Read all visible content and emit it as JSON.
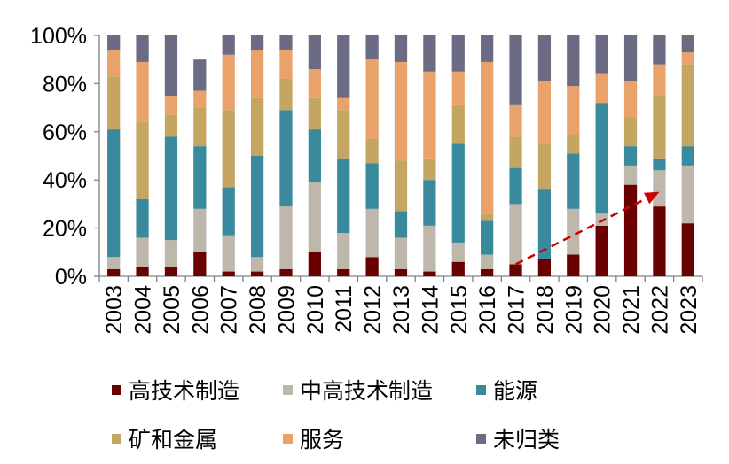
{
  "chart_data": {
    "type": "bar",
    "stacked": true,
    "categories": [
      "2003",
      "2004",
      "2005",
      "2006",
      "2007",
      "2008",
      "2009",
      "2010",
      "2011",
      "2012",
      "2013",
      "2014",
      "2015",
      "2016",
      "2017",
      "2018",
      "2019",
      "2020",
      "2021",
      "2022",
      "2023"
    ],
    "y_ticks": [
      "0%",
      "20%",
      "40%",
      "60%",
      "80%",
      "100%"
    ],
    "ylim": [
      0,
      100
    ],
    "grid": false,
    "legend_position": "bottom",
    "series": [
      {
        "name": "高技术制造",
        "color": "#6b0000",
        "values": [
          3,
          4,
          4,
          10,
          2,
          2,
          3,
          10,
          3,
          8,
          3,
          2,
          6,
          3,
          5,
          7,
          9,
          21,
          38,
          29,
          22
        ]
      },
      {
        "name": "中高技术制造",
        "color": "#bdb8ab",
        "values": [
          5,
          12,
          11,
          18,
          15,
          6,
          26,
          29,
          15,
          20,
          13,
          19,
          8,
          6,
          25,
          0,
          19,
          5,
          8,
          15,
          24
        ]
      },
      {
        "name": "能源",
        "color": "#3a8a9e",
        "values": [
          53,
          16,
          43,
          26,
          20,
          42,
          40,
          22,
          31,
          19,
          11,
          19,
          41,
          14,
          15,
          29,
          23,
          46,
          8,
          5,
          8
        ]
      },
      {
        "name": "矿和金属",
        "color": "#c4a562",
        "values": [
          22,
          32,
          9,
          16,
          32,
          24,
          13,
          13,
          20,
          10,
          21,
          9,
          16,
          3,
          13,
          19,
          8,
          0,
          12,
          26,
          34
        ]
      },
      {
        "name": "服务",
        "color": "#e9a26a",
        "values": [
          11,
          25,
          8,
          7,
          23,
          20,
          12,
          12,
          5,
          33,
          41,
          36,
          14,
          63,
          13,
          26,
          20,
          12,
          15,
          13,
          5
        ]
      },
      {
        "name": "未归类",
        "color": "#6b6b84",
        "values": [
          6,
          11,
          25,
          13,
          8,
          6,
          6,
          14,
          26,
          10,
          11,
          15,
          15,
          11,
          29,
          19,
          21,
          16,
          19,
          12,
          7
        ]
      }
    ],
    "annotations": [
      {
        "type": "trend-arrow",
        "color": "#cc0000",
        "style": "dashed",
        "from_category": "2017",
        "from_value": 5,
        "to_category": "2022",
        "to_value": 35
      }
    ]
  }
}
